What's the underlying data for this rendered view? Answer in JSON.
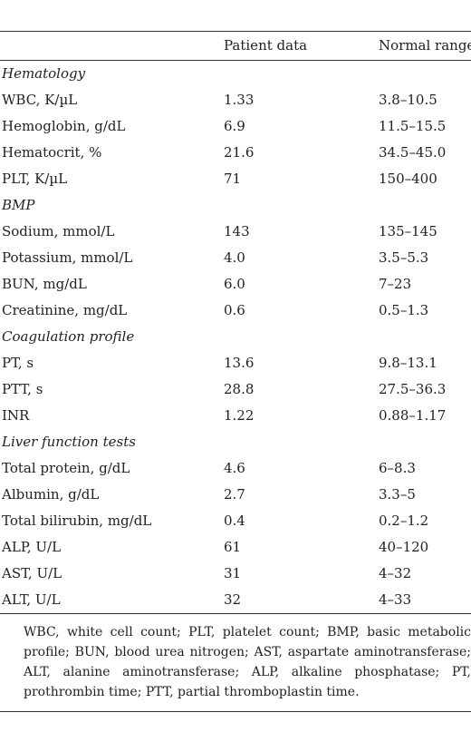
{
  "table": {
    "columns": [
      "",
      "Patient data",
      "Normal range"
    ],
    "rows": [
      {
        "type": "section",
        "label": "Hematology"
      },
      {
        "type": "data",
        "label": "WBC, K/µL",
        "patient": "1.33",
        "normal": "3.8–10.5"
      },
      {
        "type": "data",
        "label": "Hemoglobin, g/dL",
        "patient": "6.9",
        "normal": "11.5–15.5"
      },
      {
        "type": "data",
        "label": "Hematocrit, %",
        "patient": "21.6",
        "normal": "34.5–45.0"
      },
      {
        "type": "data",
        "label": "PLT, K/µL",
        "patient": "71",
        "normal": "150–400"
      },
      {
        "type": "section",
        "label": "BMP"
      },
      {
        "type": "data",
        "label": "Sodium, mmol/L",
        "patient": "143",
        "normal": "135–145"
      },
      {
        "type": "data",
        "label": "Potassium, mmol/L",
        "patient": "4.0",
        "normal": "3.5–5.3"
      },
      {
        "type": "data",
        "label": "BUN, mg/dL",
        "patient": "6.0",
        "normal": "7–23"
      },
      {
        "type": "data",
        "label": "Creatinine, mg/dL",
        "patient": "0.6",
        "normal": "0.5–1.3"
      },
      {
        "type": "section",
        "label": "Coagulation profile"
      },
      {
        "type": "data",
        "label": "PT, s",
        "patient": "13.6",
        "normal": "9.8–13.1"
      },
      {
        "type": "data",
        "label": "PTT, s",
        "patient": "28.8",
        "normal": "27.5–36.3"
      },
      {
        "type": "data",
        "label": "INR",
        "patient": "1.22",
        "normal": "0.88–1.17"
      },
      {
        "type": "section",
        "label": "Liver function tests"
      },
      {
        "type": "data",
        "label": "Total protein, g/dL",
        "patient": "4.6",
        "normal": "6–8.3"
      },
      {
        "type": "data",
        "label": "Albumin, g/dL",
        "patient": "2.7",
        "normal": "3.3–5"
      },
      {
        "type": "data",
        "label": "Total bilirubin, mg/dL",
        "patient": "0.4",
        "normal": "0.2–1.2"
      },
      {
        "type": "data",
        "label": "ALP, U/L",
        "patient": "61",
        "normal": "40–120"
      },
      {
        "type": "data",
        "label": "AST, U/L",
        "patient": "31",
        "normal": "4–32"
      },
      {
        "type": "data",
        "label": "ALT, U/L",
        "patient": "32",
        "normal": "4–33"
      }
    ],
    "footnote": "WBC, white cell count; PLT, platelet count; BMP, basic metabolic profile; BUN, blood urea nitrogen; AST, aspartate aminotransferase; ALT, alanine aminotransferase; ALP, alkaline phosphatase; PT, prothrombin time; PTT, partial thromboplastin time."
  }
}
